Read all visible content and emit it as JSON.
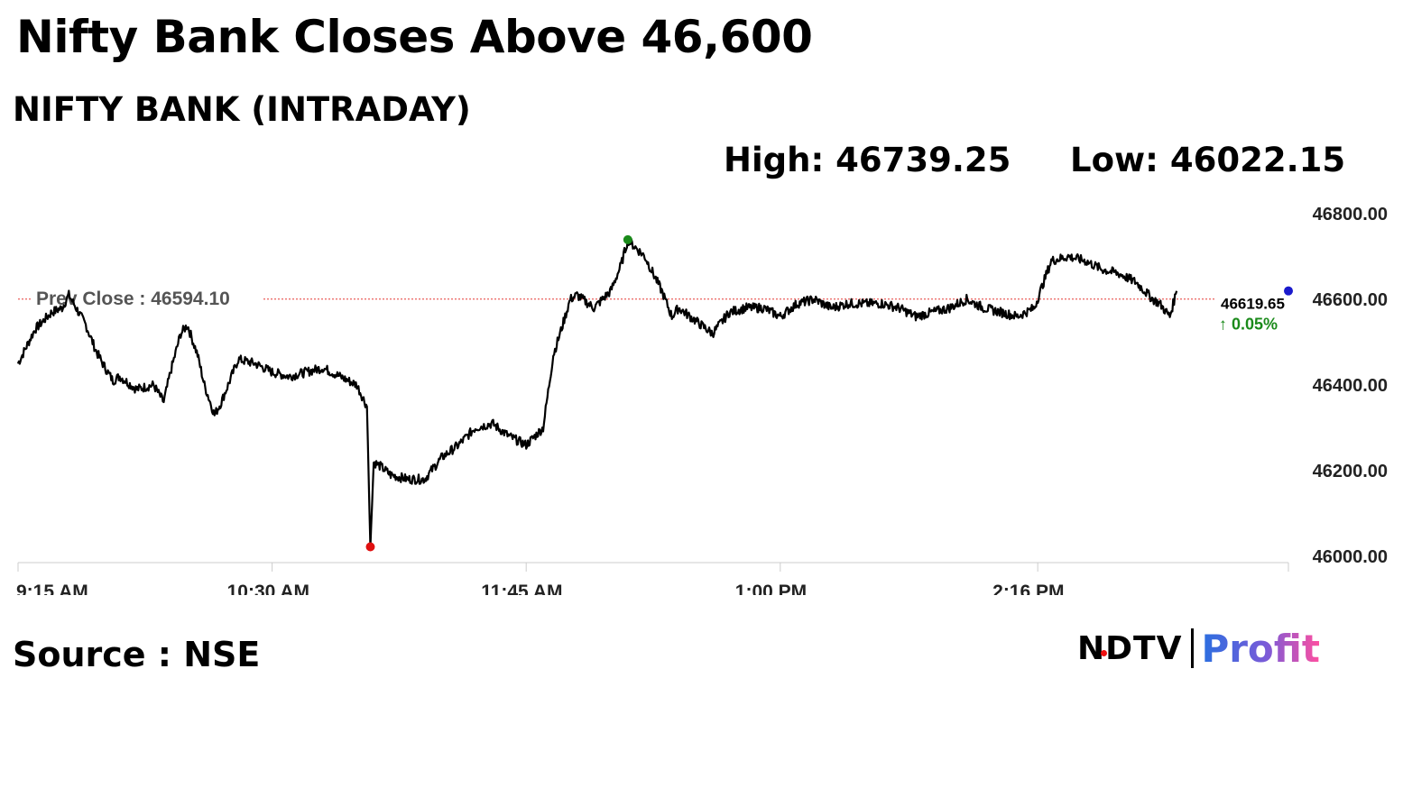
{
  "headline": "Nifty Bank Closes Above 46,600",
  "subtitle": "NIFTY BANK (INTRADAY)",
  "stats": {
    "high": "High: 46739.25",
    "low": "Low: 46022.15"
  },
  "source": "Source : NSE",
  "brand": {
    "ndtv": "NDTV",
    "profit": "Profit"
  },
  "colors": {
    "line": "#000000",
    "prev_close": "#e53935",
    "high_dot": "#1a8a1a",
    "low_dot": "#e01010",
    "last_dot": "#1a1acc",
    "change_up": "#1a8a1a",
    "axis_text": "#222222",
    "grid": "#cccccc"
  },
  "chart_data": {
    "type": "line",
    "x_ticks": [
      "9:15 AM",
      "10:30 AM",
      "11:45 AM",
      "1:00 PM",
      "2:16 PM"
    ],
    "y_ticks": [
      "46800.00",
      "46600.00",
      "46400.00",
      "46200.00",
      "46000.00"
    ],
    "ylim": [
      46000,
      46800
    ],
    "xlim_minutes": [
      555,
      930
    ],
    "prev_close_label": "Prev Close : 46594.10",
    "prev_close": 46594.1,
    "last_price_label": "46619.65",
    "change_label": "↑ 0.05%",
    "last_price": 46619.65,
    "high": 46739.25,
    "high_time": "12:15 PM",
    "low": 46022.15,
    "low_time": "10:59 AM",
    "series": [
      {
        "x": [
          "9:15",
          "9:20",
          "9:25",
          "9:28",
          "9:30",
          "9:35",
          "9:38",
          "9:40",
          "9:43",
          "9:45",
          "9:50",
          "9:55",
          "9:58",
          "10:00",
          "10:03",
          "10:05",
          "10:08",
          "10:10",
          "10:13",
          "10:15",
          "10:20",
          "10:25",
          "10:30",
          "10:35",
          "10:40",
          "10:45",
          "10:50",
          "10:55",
          "10:58",
          "10:59",
          "11:00",
          "11:02",
          "11:05",
          "11:10",
          "11:15",
          "11:20",
          "11:25",
          "11:30",
          "11:35",
          "11:40",
          "11:45",
          "11:50",
          "11:53",
          "11:55",
          "11:58",
          "12:00",
          "12:05",
          "12:10",
          "12:13",
          "12:15",
          "12:20",
          "12:25",
          "12:28",
          "12:30",
          "12:35",
          "12:40",
          "12:45",
          "12:50",
          "12:55",
          "13:00",
          "13:05",
          "13:10",
          "13:15",
          "13:20",
          "13:25",
          "13:30",
          "13:35",
          "13:40",
          "13:45",
          "13:50",
          "13:55",
          "14:00",
          "14:05",
          "14:10",
          "14:15",
          "14:20",
          "14:25",
          "14:30",
          "14:35",
          "14:40",
          "14:45",
          "14:50",
          "14:52",
          "14:55",
          "14:57"
        ],
        "values": [
          46450,
          46530,
          46570,
          46580,
          46610,
          46540,
          46480,
          46450,
          46410,
          46420,
          46390,
          46400,
          46360,
          46430,
          46520,
          46540,
          46470,
          46400,
          46330,
          46360,
          46460,
          46450,
          46430,
          46420,
          46430,
          46440,
          46420,
          46400,
          46350,
          46022,
          46220,
          46210,
          46190,
          46180,
          46180,
          46230,
          46260,
          46300,
          46310,
          46280,
          46260,
          46300,
          46470,
          46520,
          46600,
          46610,
          46580,
          46620,
          46680,
          46739,
          46700,
          46620,
          46560,
          46580,
          46550,
          46520,
          46570,
          46580,
          46580,
          46560,
          46590,
          46600,
          46580,
          46590,
          46590,
          46590,
          46580,
          46560,
          46570,
          46580,
          46600,
          46580,
          46570,
          46560,
          46580,
          46690,
          46700,
          46690,
          46670,
          46660,
          46640,
          46600,
          46590,
          46560,
          46619.65
        ]
      }
    ]
  }
}
